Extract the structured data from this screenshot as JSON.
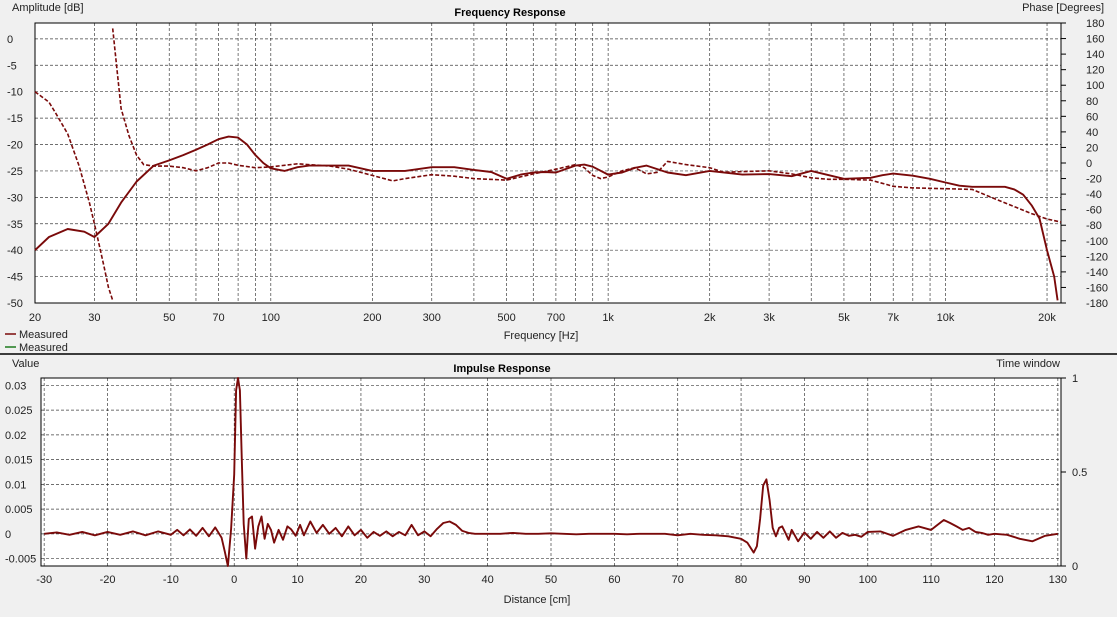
{
  "colors": {
    "measured_1": "#7a0a0a",
    "measured_2": "#1e7a1e",
    "divider": "#000000",
    "background": "#f0f0f0"
  },
  "chart_data": [
    {
      "type": "line",
      "title": "Frequency Response",
      "xlabel": "Frequency [Hz]",
      "ylabel": "Amplitude [dB]",
      "y2label": "Phase [Degrees]",
      "xscale": "log",
      "xlim": [
        20,
        22000
      ],
      "ylim": [
        -50,
        3
      ],
      "y2lim": [
        -180,
        180
      ],
      "xticks": [
        {
          "v": 20,
          "t": "20"
        },
        {
          "v": 30,
          "t": "30"
        },
        {
          "v": 50,
          "t": "50"
        },
        {
          "v": 70,
          "t": "70"
        },
        {
          "v": 100,
          "t": "100"
        },
        {
          "v": 200,
          "t": "200"
        },
        {
          "v": 300,
          "t": "300"
        },
        {
          "v": 500,
          "t": "500"
        },
        {
          "v": 700,
          "t": "700"
        },
        {
          "v": 1000,
          "t": "1k"
        },
        {
          "v": 2000,
          "t": "2k"
        },
        {
          "v": 3000,
          "t": "3k"
        },
        {
          "v": 5000,
          "t": "5k"
        },
        {
          "v": 7000,
          "t": "7k"
        },
        {
          "v": 10000,
          "t": "10k"
        },
        {
          "v": 20000,
          "t": "20k"
        }
      ],
      "minor_x": [
        40,
        60,
        80,
        90,
        400,
        600,
        800,
        900,
        4000,
        6000,
        8000,
        9000
      ],
      "yticks": [
        0,
        -5,
        -10,
        -15,
        -20,
        -25,
        -30,
        -35,
        -40,
        -45,
        -50
      ],
      "y2ticks": [
        180,
        160,
        140,
        120,
        100,
        80,
        60,
        40,
        20,
        0,
        -20,
        -40,
        -60,
        -80,
        -100,
        -120,
        -140,
        -160,
        -180
      ],
      "legend": {
        "placement": "bottom-left",
        "entries": [
          "Measured",
          "Measured"
        ]
      },
      "series": [
        {
          "name": "Measured",
          "axis": "amplitude",
          "style": "solid",
          "x": [
            20,
            22,
            25,
            28,
            30,
            33,
            36,
            40,
            45,
            50,
            55,
            60,
            65,
            70,
            75,
            80,
            85,
            90,
            95,
            100,
            110,
            120,
            130,
            150,
            170,
            200,
            250,
            300,
            350,
            400,
            450,
            500,
            550,
            600,
            650,
            700,
            800,
            850,
            900,
            1000,
            1100,
            1200,
            1300,
            1500,
            1700,
            2000,
            2500,
            3000,
            3500,
            4000,
            5000,
            6000,
            6500,
            7000,
            8000,
            9000,
            10000,
            11000,
            12000,
            14000,
            15000,
            16000,
            17000,
            18000,
            19000,
            20000,
            21000,
            21500
          ],
          "y": [
            -40,
            -37.5,
            -36,
            -36.5,
            -37.5,
            -35,
            -31,
            -27,
            -24,
            -23,
            -22,
            -21,
            -20,
            -19,
            -18.5,
            -18.7,
            -20,
            -22,
            -23.5,
            -24.5,
            -25,
            -24.3,
            -24,
            -24,
            -24,
            -25,
            -25,
            -24.3,
            -24.3,
            -24.8,
            -25.2,
            -26.5,
            -25.7,
            -25.3,
            -25.2,
            -25.3,
            -24,
            -23.8,
            -24.2,
            -25.7,
            -25.3,
            -24.4,
            -24,
            -25.3,
            -25.8,
            -25,
            -25.7,
            -25.6,
            -26,
            -25,
            -26.5,
            -26.3,
            -25.8,
            -25.5,
            -25.9,
            -26.5,
            -27.2,
            -27.8,
            -28,
            -28,
            -28,
            -28.5,
            -29.5,
            -31.5,
            -34,
            -40,
            -45,
            -49.5
          ]
        },
        {
          "name": "Measured",
          "axis": "amplitude",
          "style": "dashed",
          "x": [
            20,
            21,
            22,
            23,
            25,
            27,
            29,
            30,
            31,
            32,
            33,
            34
          ],
          "y": [
            -10,
            -11,
            -12,
            -14,
            -18,
            -24,
            -31,
            -35,
            -39,
            -43,
            -47,
            -49.5
          ]
        },
        {
          "name": "Measured",
          "axis": "phase",
          "style": "dashed",
          "x": [
            34,
            35,
            36,
            38,
            40,
            42,
            45,
            50,
            55,
            60,
            65,
            70,
            75,
            80,
            90,
            100,
            120,
            150,
            170,
            200,
            230,
            250,
            300,
            350,
            400,
            500,
            600,
            700,
            750,
            800,
            850,
            900,
            950,
            1000,
            1100,
            1200,
            1300,
            1400,
            1500,
            1700,
            2000,
            2200,
            2500,
            3000,
            3500,
            4000,
            4500,
            5000,
            6000,
            7000,
            8000,
            10000,
            12000,
            14000,
            16000,
            18000,
            20000,
            22000
          ],
          "y": [
            173,
            120,
            70,
            35,
            10,
            -2,
            -4,
            -4,
            -6,
            -10,
            -6,
            0,
            0,
            -3,
            -6,
            -5,
            -1,
            -4,
            -8,
            -16,
            -23,
            -20,
            -15,
            -17,
            -20,
            -22,
            -14,
            -8,
            -5,
            -2,
            -6,
            -16,
            -20,
            -18,
            -10,
            -6,
            -14,
            -12,
            2,
            -2,
            -6,
            -12,
            -11,
            -10,
            -14,
            -19,
            -21,
            -21,
            -22,
            -30,
            -32,
            -33,
            -34,
            -46,
            -56,
            -65,
            -72,
            -76
          ]
        }
      ]
    },
    {
      "type": "line",
      "title": "Impulse Response",
      "xlabel": "Distance [cm]",
      "ylabel": "Value",
      "y2label": "Time window",
      "xlim": [
        -30.5,
        130.5
      ],
      "ylim": [
        -0.0065,
        0.0315
      ],
      "y2lim": [
        0,
        1
      ],
      "xticks": [
        -30,
        -20,
        -10,
        0,
        10,
        20,
        30,
        40,
        50,
        60,
        70,
        80,
        90,
        100,
        110,
        120,
        130
      ],
      "yticks": [
        {
          "v": 0.03,
          "t": "0.03"
        },
        {
          "v": 0.025,
          "t": "0.025"
        },
        {
          "v": 0.02,
          "t": "0.02"
        },
        {
          "v": 0.015,
          "t": "0.015"
        },
        {
          "v": 0.01,
          "t": "0.01"
        },
        {
          "v": 0.005,
          "t": "0.005"
        },
        {
          "v": 0,
          "t": "0"
        },
        {
          "v": -0.005,
          "t": "-0.005"
        }
      ],
      "y2ticks": [
        {
          "v": 1,
          "t": "1"
        },
        {
          "v": 0.5,
          "t": "0.5"
        },
        {
          "v": 0,
          "t": "0"
        }
      ],
      "series": [
        {
          "name": "Measured",
          "x": [
            -30,
            -28,
            -26,
            -24,
            -22,
            -20,
            -18,
            -16,
            -14,
            -12,
            -10,
            -9,
            -8,
            -7,
            -6,
            -5,
            -4,
            -3,
            -2,
            -1.5,
            -1,
            -0.5,
            0,
            0.3,
            0.6,
            0.9,
            1.2,
            1.5,
            1.9,
            2.3,
            2.8,
            3.3,
            3.8,
            4.3,
            4.8,
            5.3,
            5.8,
            6.3,
            7,
            7.7,
            8.4,
            9,
            9.7,
            10.4,
            11,
            12,
            13,
            14,
            15,
            16,
            17,
            18,
            19,
            20,
            21,
            22,
            23,
            24,
            25,
            26,
            27,
            28,
            29,
            30,
            31,
            32,
            33,
            34,
            35,
            36,
            37,
            38,
            39,
            40,
            42,
            44,
            46,
            48,
            50,
            52,
            54,
            56,
            58,
            60,
            62,
            64,
            66,
            68,
            70,
            72,
            74,
            76,
            78,
            80,
            81,
            82,
            82.5,
            83,
            83.5,
            84,
            84.5,
            85,
            85.5,
            86,
            86.5,
            87,
            87.5,
            88,
            89,
            90,
            91,
            92,
            93,
            94,
            95,
            96,
            97,
            98,
            99,
            100,
            102,
            104,
            106,
            108,
            110,
            111,
            112,
            113,
            114,
            115,
            116,
            117,
            118,
            119,
            120,
            122,
            124,
            126,
            128,
            130
          ],
          "y": [
            0,
            0.0003,
            -0.0002,
            0.0004,
            -0.0003,
            0.0004,
            -0.0002,
            0.0005,
            -0.0003,
            0.0005,
            -0.0002,
            0.0008,
            -0.0003,
            0.0009,
            -0.0004,
            0.0012,
            -0.0005,
            0.0013,
            -0.0008,
            -0.0035,
            -0.0065,
            0.001,
            0.012,
            0.029,
            0.0315,
            0.029,
            0.015,
            0.002,
            -0.005,
            0.003,
            0.0035,
            -0.003,
            0.0015,
            0.0035,
            -0.001,
            0.002,
            0.0008,
            -0.0018,
            0.0008,
            -0.0012,
            0.0015,
            0.0009,
            -0.0004,
            0.0018,
            -0.0003,
            0.0025,
            0.0002,
            0.0018,
            0,
            0.0012,
            -0.0005,
            0.0015,
            -0.0003,
            0.0008,
            -0.0008,
            0.0004,
            -0.0004,
            0.0005,
            -0.0005,
            0.0004,
            -0.0003,
            0.0018,
            -0.0003,
            0.0005,
            -0.0005,
            0.001,
            0.0022,
            0.0025,
            0.0018,
            0.0006,
            0.0002,
            0,
            0,
            0,
            0,
            0.0002,
            0,
            0,
            0.0001,
            0,
            -0.0001,
            0,
            0,
            0,
            -0.0001,
            0,
            0,
            0,
            -0.0003,
            0,
            -0.0002,
            -0.0003,
            -0.0005,
            -0.001,
            -0.0018,
            -0.0038,
            -0.0025,
            0.003,
            0.0098,
            0.011,
            0.0068,
            0.0012,
            -0.0005,
            0.0012,
            0.0015,
            0.0002,
            -0.0012,
            0.0008,
            -0.0015,
            0.0003,
            -0.001,
            0.0004,
            -0.0008,
            0.0005,
            -0.0008,
            0.0002,
            -0.0004,
            -0.0002,
            -0.0006,
            0.0004,
            0.0005,
            -0.0004,
            0.0008,
            0.0015,
            0.0008,
            0.0018,
            0.0028,
            0.0022,
            0.0015,
            0.0008,
            0.0012,
            0.0004,
            0.0002,
            -0.0002,
            0,
            -0.0002,
            -0.001,
            -0.0015,
            -0.0004,
            0
          ]
        }
      ]
    }
  ]
}
